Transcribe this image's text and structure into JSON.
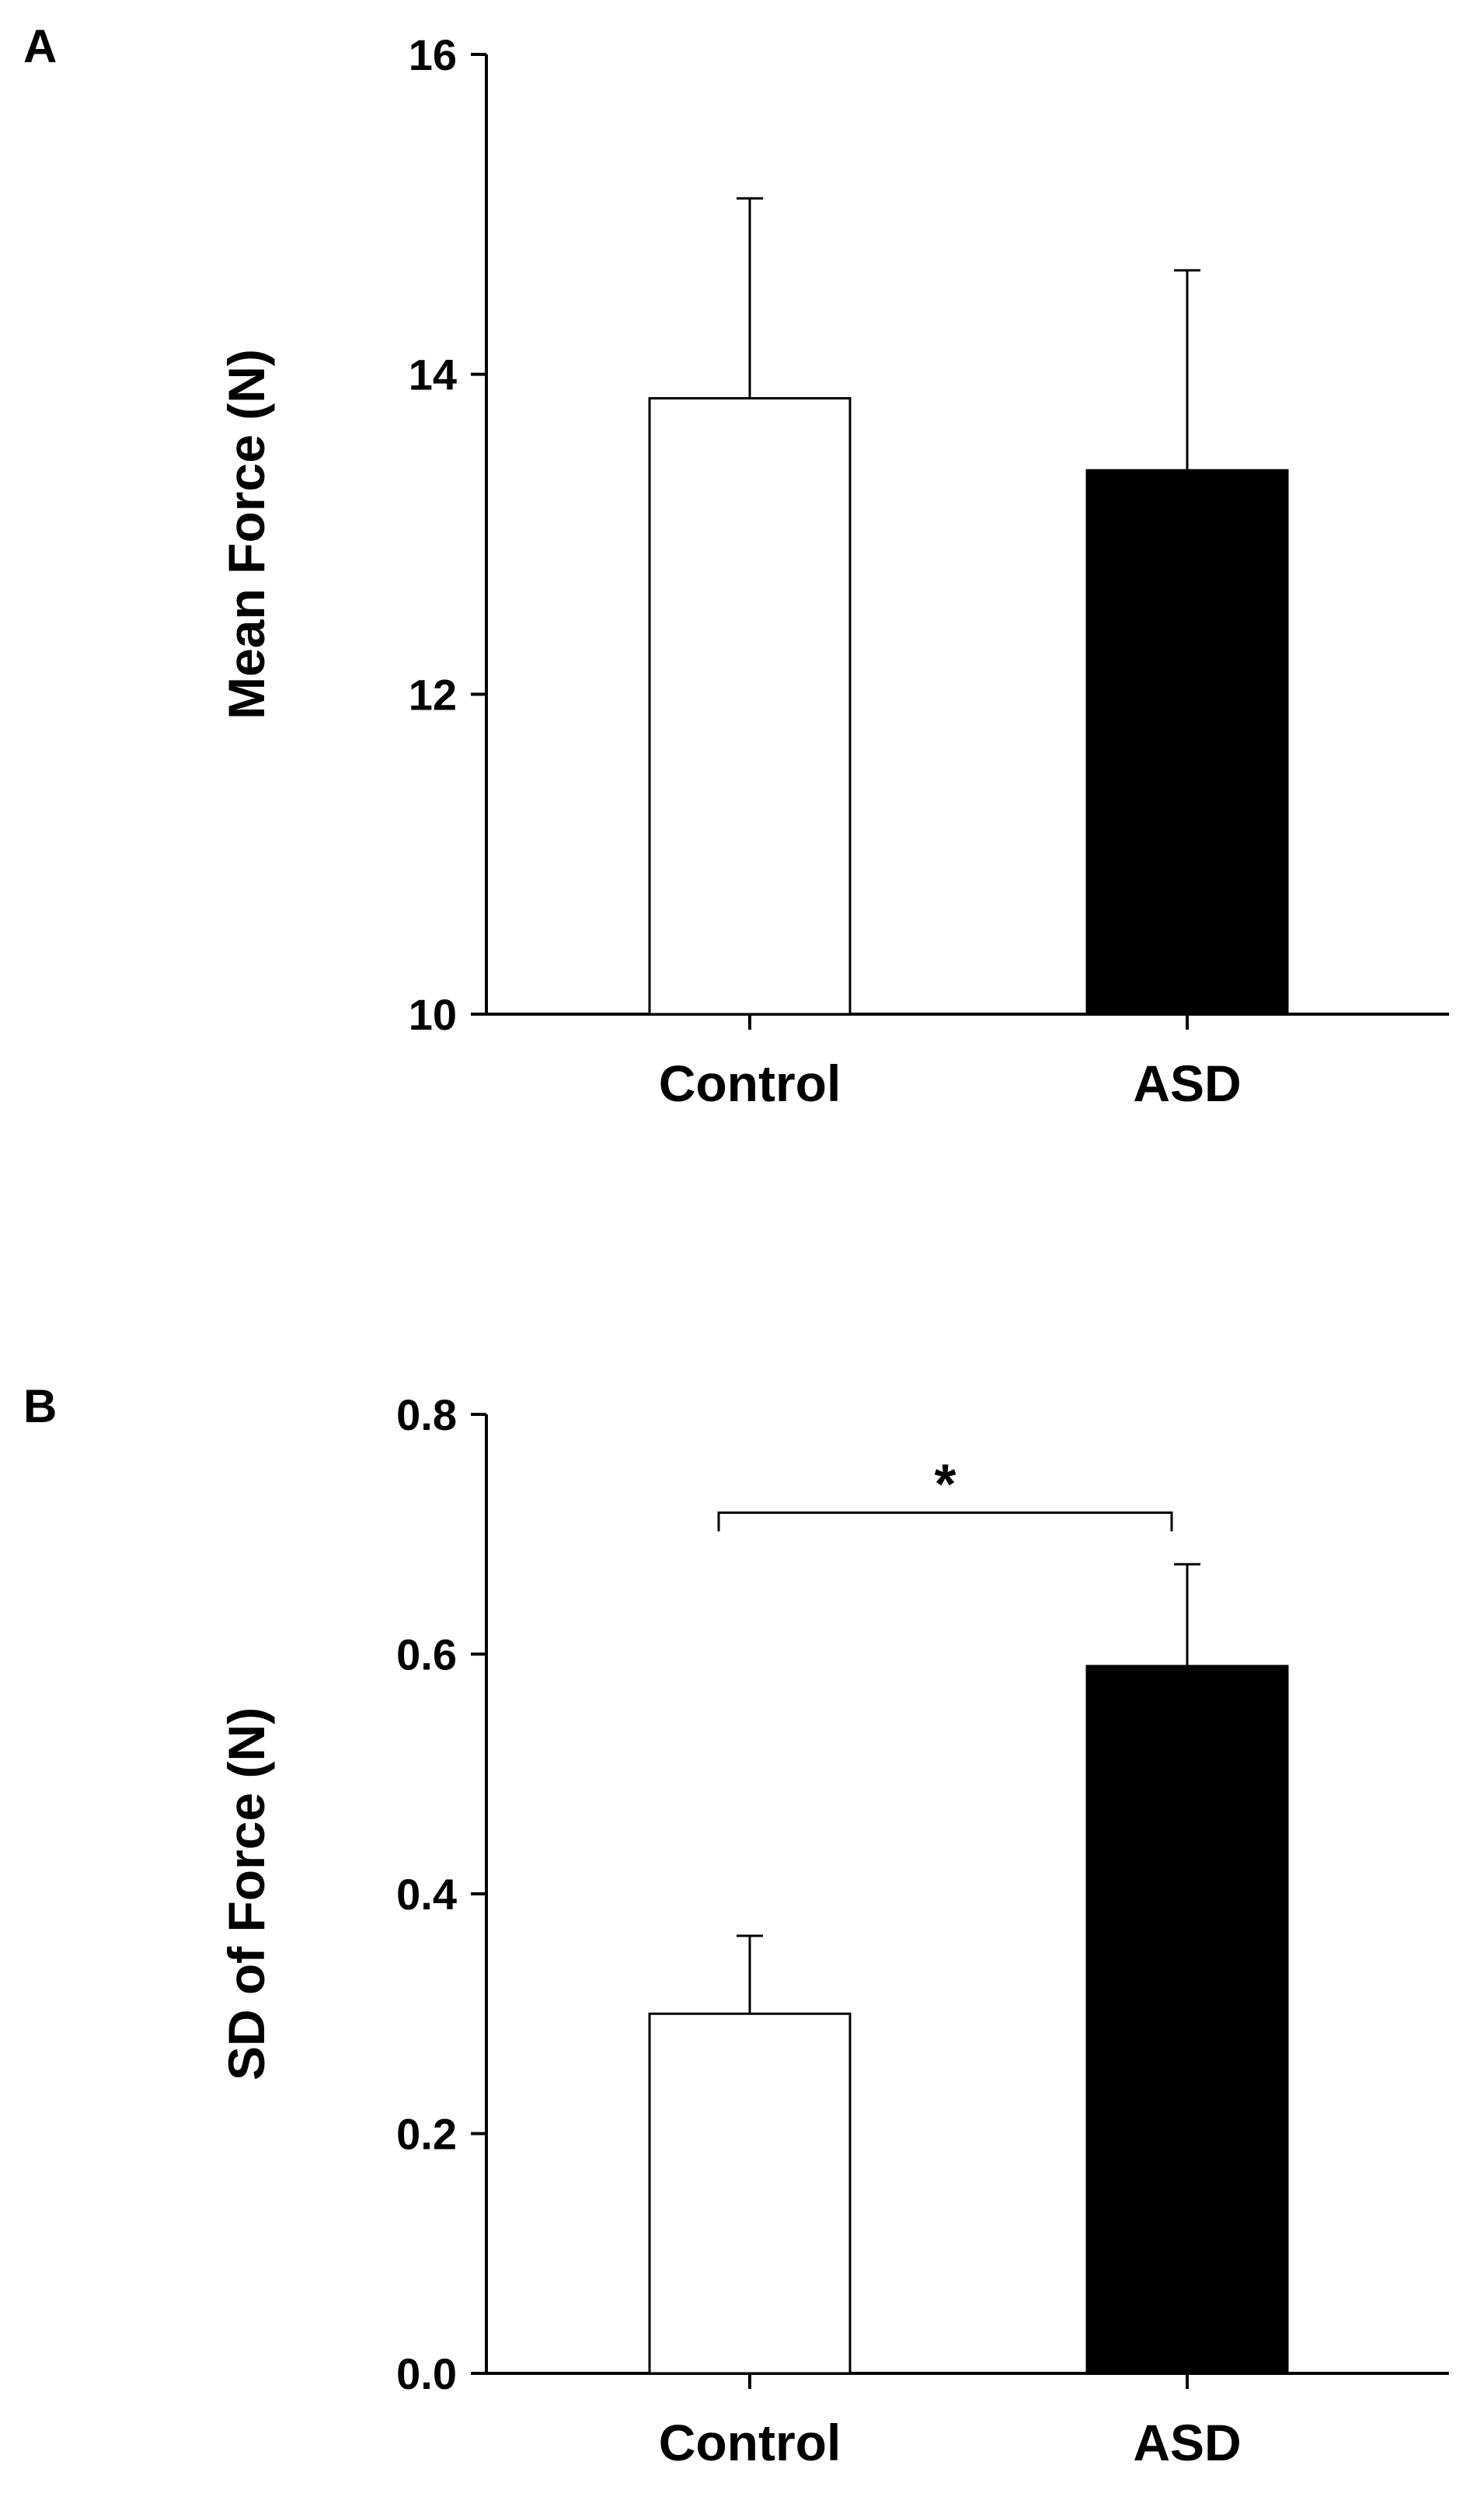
{
  "chart_data": [
    {
      "panel_label": "A",
      "type": "bar",
      "categories": [
        "Control",
        "ASD"
      ],
      "values": [
        13.85,
        13.4
      ],
      "error_upper": [
        1.25,
        1.25
      ],
      "colors": [
        "#ffffff",
        "#000000"
      ],
      "ylabel": "Mean Force (N)",
      "xlabel": "",
      "ylim": [
        10,
        16
      ],
      "yticks": [
        10,
        12,
        14,
        16
      ],
      "grid": false,
      "significance": null
    },
    {
      "panel_label": "B",
      "type": "bar",
      "categories": [
        "Control",
        "ASD"
      ],
      "values": [
        0.3,
        0.59
      ],
      "error_upper": [
        0.065,
        0.085
      ],
      "colors": [
        "#ffffff",
        "#000000"
      ],
      "ylabel": "SD of Force (N)",
      "xlabel": "",
      "ylim": [
        0.0,
        0.8
      ],
      "yticks": [
        0.0,
        0.2,
        0.4,
        0.6,
        0.8
      ],
      "tick_decimals": 1,
      "grid": false,
      "significance": {
        "between": [
          0,
          1
        ],
        "label": "*"
      }
    }
  ]
}
